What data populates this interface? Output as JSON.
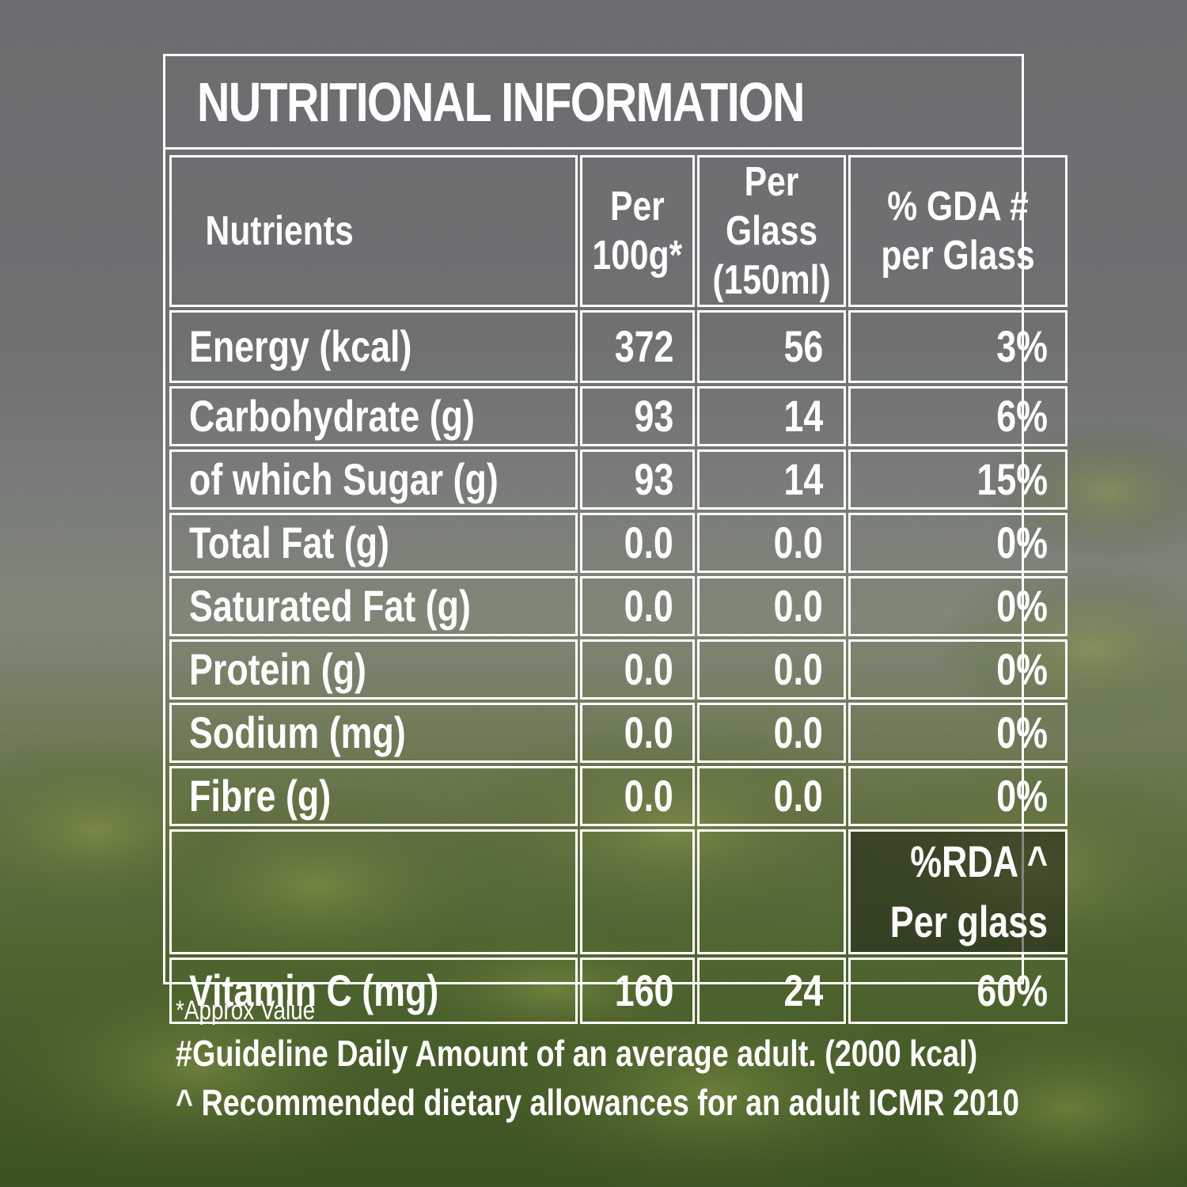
{
  "title": "NUTRITIONAL INFORMATION",
  "columns": {
    "nutrients": "Nutrients",
    "per100_line1": "Per",
    "per100_line2": "100g*",
    "perglass_line1": "Per Glass",
    "perglass_line2": "(150ml)",
    "gda_line1": "% GDA #",
    "gda_line2": "per Glass"
  },
  "rows": [
    {
      "name": "Energy (kcal)",
      "per100": "372",
      "perglass": "56",
      "pct": "3%"
    },
    {
      "name": "Carbohydrate (g)",
      "per100": "93",
      "perglass": "14",
      "pct": "6%"
    },
    {
      "name": "of which Sugar (g)",
      "per100": "93",
      "perglass": "14",
      "pct": "15%"
    },
    {
      "name": "Total Fat (g)",
      "per100": "0.0",
      "perglass": "0.0",
      "pct": "0%"
    },
    {
      "name": "Saturated Fat (g)",
      "per100": "0.0",
      "perglass": "0.0",
      "pct": "0%"
    },
    {
      "name": "Protein (g)",
      "per100": "0.0",
      "perglass": "0.0",
      "pct": "0%"
    },
    {
      "name": "Sodium (mg)",
      "per100": "0.0",
      "perglass": "0.0",
      "pct": "0%"
    },
    {
      "name": "Fibre (g)",
      "per100": "0.0",
      "perglass": "0.0",
      "pct": "0%"
    }
  ],
  "rda_header": {
    "line1": "%RDA ^",
    "line2": "Per glass"
  },
  "vitamin_row": {
    "name": "Vitamin C (mg)",
    "per100": "160",
    "perglass": "24",
    "pct": "60%"
  },
  "notes": {
    "approx": "*Approx Value",
    "gda": "#Guideline Daily Amount of an average adult. (2000 kcal)",
    "rda": "^ Recommended dietary allowances for an adult ICMR 2010"
  },
  "colors": {
    "text": "#ffffff",
    "border": "#ffffff",
    "sky": "#6e7072",
    "leaf": "#4f6630"
  }
}
